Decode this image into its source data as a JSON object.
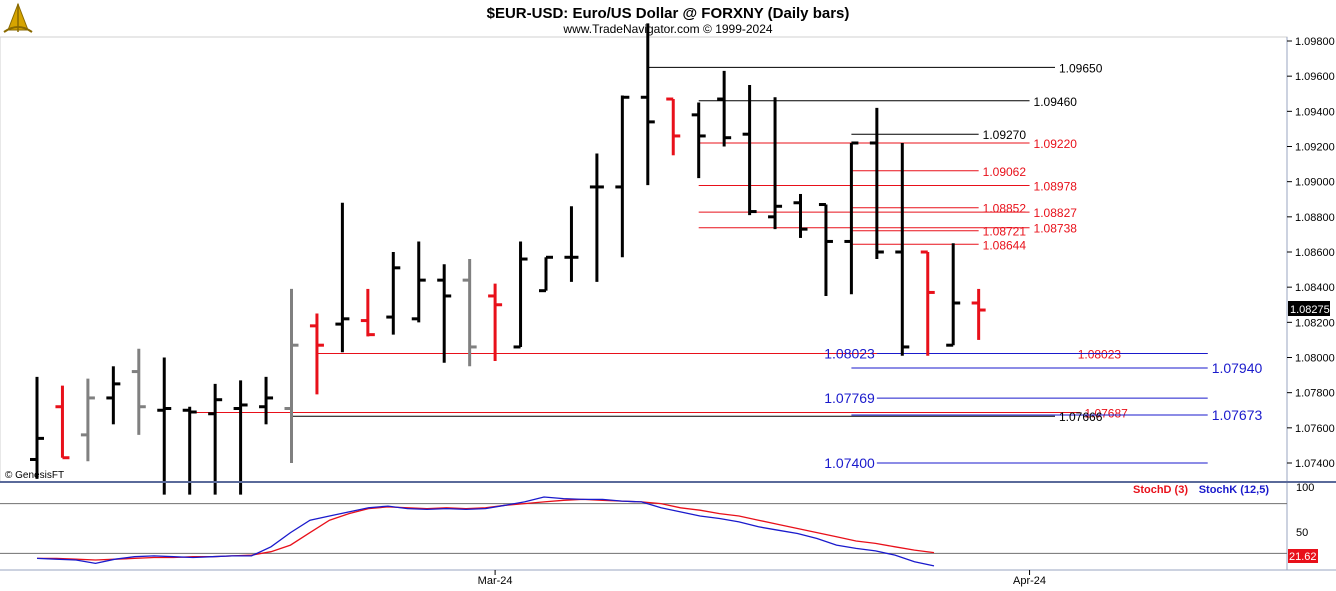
{
  "header": {
    "title": "$EUR-USD:  Euro/US Dollar @ FORXNY  (Daily bars)",
    "subtitle": "www.TradeNavigator.com © 1999-2024",
    "copyright": "© GenesisFT"
  },
  "colors": {
    "up_bar": "#000000",
    "down_bar": "#e8101a",
    "neutral_bar": "#808080",
    "level_black": "#000000",
    "level_red": "#e8101a",
    "level_blue": "#1a1acc",
    "stoch_d": "#e8101a",
    "stoch_k": "#1a1acc",
    "price_box": "#000000"
  },
  "chart_data": [
    {
      "type": "ohlc",
      "title": "$EUR-USD:  Euro/US Dollar @ FORXNY  (Daily bars)",
      "ylim": [
        1.073,
        1.099
      ],
      "y_ticks": [
        "1.09800",
        "1.09600",
        "1.09400",
        "1.09200",
        "1.09000",
        "1.08800",
        "1.08600",
        "1.08400",
        "1.08200",
        "1.08000",
        "1.07800",
        "1.07600",
        "1.07400"
      ],
      "x_ticks": [
        {
          "label": "Mar-24",
          "bar": 18
        },
        {
          "label": "Apr-24",
          "bar": 39
        }
      ],
      "last_price": "1.08275",
      "bars": [
        {
          "c": "black",
          "o": 1.0742,
          "h": 1.0789,
          "l": 1.0731,
          "cl": 1.0754
        },
        {
          "c": "red",
          "o": 1.0772,
          "h": 1.0784,
          "l": 1.0743,
          "cl": 1.0743
        },
        {
          "c": "gray",
          "o": 1.0756,
          "h": 1.0788,
          "l": 1.0741,
          "cl": 1.0777
        },
        {
          "c": "black",
          "o": 1.0777,
          "h": 1.0795,
          "l": 1.0762,
          "cl": 1.0785
        },
        {
          "c": "gray",
          "o": 1.0792,
          "h": 1.0805,
          "l": 1.0756,
          "cl": 1.0772
        },
        {
          "c": "black",
          "o": 1.077,
          "h": 1.08,
          "l": 1.0722,
          "cl": 1.0771
        },
        {
          "c": "black",
          "o": 1.077,
          "h": 1.0772,
          "l": 1.0722,
          "cl": 1.0769
        },
        {
          "c": "black",
          "o": 1.0768,
          "h": 1.0785,
          "l": 1.0722,
          "cl": 1.0776
        },
        {
          "c": "black",
          "o": 1.0771,
          "h": 1.0787,
          "l": 1.0722,
          "cl": 1.0773
        },
        {
          "c": "black",
          "o": 1.0772,
          "h": 1.0789,
          "l": 1.0762,
          "cl": 1.0777
        },
        {
          "c": "gray",
          "o": 1.0771,
          "h": 1.0839,
          "l": 1.074,
          "cl": 1.0807
        },
        {
          "c": "red",
          "o": 1.0818,
          "h": 1.0825,
          "l": 1.0779,
          "cl": 1.0807
        },
        {
          "c": "black",
          "o": 1.0819,
          "h": 1.0888,
          "l": 1.0803,
          "cl": 1.0822
        },
        {
          "c": "red",
          "o": 1.0821,
          "h": 1.0839,
          "l": 1.0812,
          "cl": 1.0813
        },
        {
          "c": "black",
          "o": 1.0823,
          "h": 1.086,
          "l": 1.0813,
          "cl": 1.0851
        },
        {
          "c": "black",
          "o": 1.0822,
          "h": 1.0866,
          "l": 1.082,
          "cl": 1.0844
        },
        {
          "c": "black",
          "o": 1.0844,
          "h": 1.0853,
          "l": 1.0797,
          "cl": 1.0835
        },
        {
          "c": "gray",
          "o": 1.0844,
          "h": 1.0856,
          "l": 1.0795,
          "cl": 1.0806
        },
        {
          "c": "red",
          "o": 1.0835,
          "h": 1.0842,
          "l": 1.0798,
          "cl": 1.083
        },
        {
          "c": "black",
          "o": 1.0806,
          "h": 1.0866,
          "l": 1.0806,
          "cl": 1.0856
        },
        {
          "c": "black",
          "o": 1.0838,
          "h": 1.0857,
          "l": 1.0838,
          "cl": 1.0857
        },
        {
          "c": "black",
          "o": 1.0857,
          "h": 1.0886,
          "l": 1.0843,
          "cl": 1.0857
        },
        {
          "c": "black",
          "o": 1.0897,
          "h": 1.0916,
          "l": 1.0843,
          "cl": 1.0897
        },
        {
          "c": "black",
          "o": 1.0897,
          "h": 1.0949,
          "l": 1.0857,
          "cl": 1.0948
        },
        {
          "c": "black",
          "o": 1.0948,
          "h": 1.099,
          "l": 1.0898,
          "cl": 1.0934
        },
        {
          "c": "red",
          "o": 1.0947,
          "h": 1.0947,
          "l": 1.0915,
          "cl": 1.0926
        },
        {
          "c": "black",
          "o": 1.0938,
          "h": 1.0945,
          "l": 1.0902,
          "cl": 1.0926
        },
        {
          "c": "black",
          "o": 1.0947,
          "h": 1.0963,
          "l": 1.092,
          "cl": 1.0925
        },
        {
          "c": "black",
          "o": 1.0927,
          "h": 1.0955,
          "l": 1.0881,
          "cl": 1.0883
        },
        {
          "c": "black",
          "o": 1.088,
          "h": 1.0948,
          "l": 1.0873,
          "cl": 1.0886
        },
        {
          "c": "black",
          "o": 1.0888,
          "h": 1.0893,
          "l": 1.0868,
          "cl": 1.0873
        },
        {
          "c": "black",
          "o": 1.0887,
          "h": 1.0887,
          "l": 1.0835,
          "cl": 1.0866
        },
        {
          "c": "black",
          "o": 1.0866,
          "h": 1.0922,
          "l": 1.0836,
          "cl": 1.0922
        },
        {
          "c": "black",
          "o": 1.0922,
          "h": 1.0942,
          "l": 1.0856,
          "cl": 1.086
        },
        {
          "c": "black",
          "o": 1.086,
          "h": 1.0922,
          "l": 1.0801,
          "cl": 1.0806
        },
        {
          "c": "red",
          "o": 1.086,
          "h": 1.086,
          "l": 1.0801,
          "cl": 1.0837
        },
        {
          "c": "black",
          "o": 1.0807,
          "h": 1.0865,
          "l": 1.0807,
          "cl": 1.0831
        },
        {
          "c": "red",
          "o": 1.0831,
          "h": 1.0839,
          "l": 1.081,
          "cl": 1.0827
        }
      ],
      "levels": [
        {
          "value": 1.0965,
          "label": "1.09650",
          "color": "black",
          "from_bar": 24,
          "to_bar": 40,
          "label_pos": "right"
        },
        {
          "value": 1.0946,
          "label": "1.09460",
          "color": "black",
          "from_bar": 26,
          "to_bar": 39,
          "label_pos": "right"
        },
        {
          "value": 1.0927,
          "label": "1.09270",
          "color": "black",
          "from_bar": 32,
          "to_bar": 37,
          "label_pos": "right"
        },
        {
          "value": 1.0922,
          "label": "1.09220",
          "color": "red",
          "from_bar": 26,
          "to_bar": 39,
          "label_pos": "right"
        },
        {
          "value": 1.09062,
          "label": "1.09062",
          "color": "red",
          "from_bar": 32,
          "to_bar": 37,
          "label_pos": "right"
        },
        {
          "value": 1.08978,
          "label": "1.08978",
          "color": "red",
          "from_bar": 26,
          "to_bar": 39,
          "label_pos": "right"
        },
        {
          "value": 1.08852,
          "label": "1.08852",
          "color": "red",
          "from_bar": 32,
          "to_bar": 37,
          "label_pos": "right"
        },
        {
          "value": 1.08827,
          "label": "1.08827",
          "color": "red",
          "from_bar": 26,
          "to_bar": 39,
          "label_pos": "right"
        },
        {
          "value": 1.08721,
          "label": "1.08721",
          "color": "red",
          "from_bar": 32,
          "to_bar": 37,
          "label_pos": "right"
        },
        {
          "value": 1.08738,
          "label": "1.08738",
          "color": "red",
          "from_bar": 26,
          "to_bar": 39,
          "label_pos": "right"
        },
        {
          "value": 1.08644,
          "label": "1.08644",
          "color": "red",
          "from_bar": 32,
          "to_bar": 37,
          "label_pos": "right"
        },
        {
          "value": 1.08023,
          "label": "1.08023",
          "color": "red",
          "from_bar": 11,
          "to_bar": 46,
          "label_pos": "right-inner"
        },
        {
          "value": 1.08023,
          "label": "1.08023",
          "color": "blue",
          "from_bar": 33,
          "to_bar": 46,
          "label_pos": "left"
        },
        {
          "value": 1.0794,
          "label": "1.07940",
          "color": "blue",
          "from_bar": 32,
          "to_bar": 46,
          "label_pos": "right"
        },
        {
          "value": 1.07769,
          "label": "1.07769",
          "color": "blue",
          "from_bar": 33,
          "to_bar": 46,
          "label_pos": "left"
        },
        {
          "value": 1.07687,
          "label": "1.07687",
          "color": "red",
          "from_bar": 6,
          "to_bar": 41,
          "label_pos": "right"
        },
        {
          "value": 1.07673,
          "label": "1.07673",
          "color": "blue",
          "from_bar": 32,
          "to_bar": 46,
          "label_pos": "right"
        },
        {
          "value": 1.07666,
          "label": "1.07666",
          "color": "black",
          "from_bar": 10,
          "to_bar": 40,
          "label_pos": "right"
        },
        {
          "value": 1.074,
          "label": "1.07400",
          "color": "blue",
          "from_bar": 33,
          "to_bar": 46,
          "label_pos": "left"
        }
      ]
    },
    {
      "type": "line",
      "title": "",
      "ylim": [
        0,
        100
      ],
      "y_ticks": [
        "100",
        "50"
      ],
      "hlines": [
        80,
        20
      ],
      "last_value": "21.62",
      "series": [
        {
          "name": "StochD (3)",
          "color": "red",
          "values": [
            14,
            14,
            13,
            12,
            13,
            14,
            15,
            15,
            16,
            16,
            17,
            18,
            22,
            30,
            45,
            60,
            68,
            74,
            76,
            75,
            74,
            75,
            74,
            75,
            78,
            80,
            82,
            84,
            85,
            84,
            83,
            82,
            80,
            75,
            72,
            68,
            65,
            60,
            55,
            50,
            45,
            40,
            35,
            32,
            28,
            24,
            21
          ]
        },
        {
          "name": "StochK (12,5)",
          "color": "blue",
          "values": [
            14,
            13,
            12,
            8,
            13,
            16,
            17,
            16,
            15,
            16,
            17,
            17,
            28,
            45,
            60,
            65,
            70,
            75,
            77,
            74,
            73,
            74,
            73,
            74,
            78,
            82,
            88,
            86,
            85,
            85,
            83,
            82,
            75,
            70,
            65,
            62,
            58,
            52,
            48,
            44,
            38,
            30,
            26,
            23,
            18,
            10,
            5
          ]
        }
      ]
    }
  ]
}
